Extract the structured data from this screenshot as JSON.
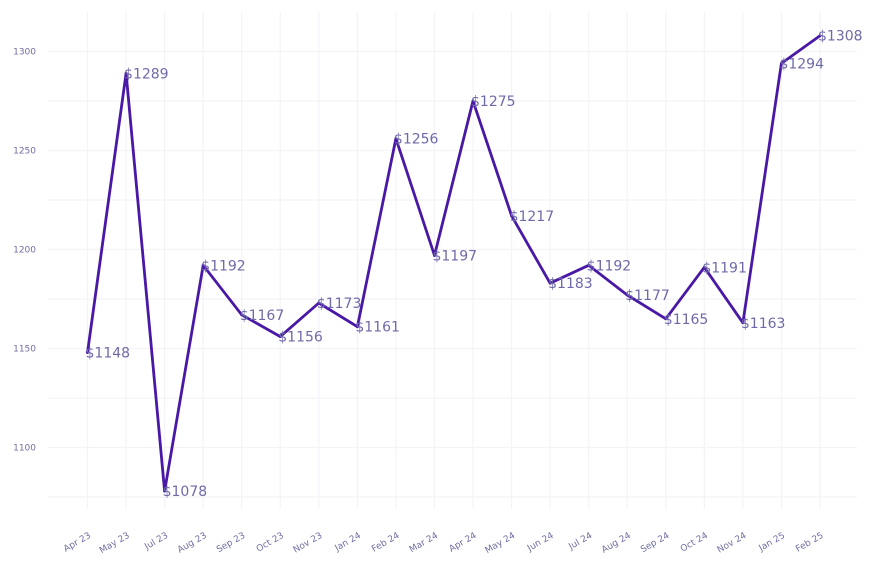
{
  "chart_data": {
    "type": "line",
    "categories": [
      "Apr 23",
      "May 23",
      "Jul 23",
      "Aug 23",
      "Sep 23",
      "Oct 23",
      "Nov 23",
      "Jan 24",
      "Feb 24",
      "Mar 24",
      "Apr 24",
      "May 24",
      "Jun 24",
      "Jul 24",
      "Aug 24",
      "Sep 24",
      "Oct 24",
      "Nov 24",
      "Jan 25",
      "Feb 25"
    ],
    "values": [
      1148,
      1289,
      1078,
      1192,
      1167,
      1156,
      1173,
      1161,
      1256,
      1197,
      1275,
      1217,
      1183,
      1192,
      1177,
      1165,
      1191,
      1163,
      1294,
      1308
    ],
    "data_labels": [
      "$1148",
      "$1289",
      "$1078",
      "$1192",
      "$1167",
      "$1156",
      "$1173",
      "$1161",
      "$1256",
      "$1197",
      "$1275",
      "$1217",
      "$1183",
      "$1192",
      "$1177",
      "$1165",
      "$1191",
      "$1163",
      "$1294",
      "$1308"
    ],
    "y_ticks": [
      1100,
      1150,
      1200,
      1250,
      1300
    ],
    "ylim": [
      1063,
      1320
    ],
    "grid": true,
    "legend": false,
    "title": "",
    "xlabel": "",
    "ylabel": "",
    "line_color": "#4a18a6",
    "text_color": "#6f6fa3"
  }
}
